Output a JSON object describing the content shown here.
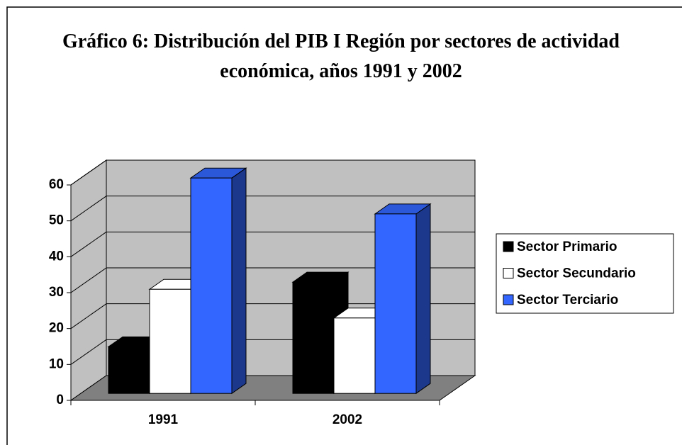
{
  "chart_data": {
    "type": "bar3d",
    "title": "Gráfico 6: Distribución del PIB I Región por sectores de actividad económica, años 1991 y 2002",
    "categories": [
      "1991",
      "2002"
    ],
    "series": [
      {
        "name": "Sector Primario",
        "color": "#000000",
        "values": [
          13,
          31
        ]
      },
      {
        "name": "Sector Secundario",
        "color": "#ffffff",
        "values": [
          29,
          21
        ]
      },
      {
        "name": "Sector Terciario",
        "color": "#3366ff",
        "values": [
          60,
          50
        ]
      }
    ],
    "ylim": [
      0,
      60
    ],
    "yticks": [
      0,
      10,
      20,
      30,
      40,
      50,
      60
    ],
    "grid": true,
    "legend": "right"
  }
}
